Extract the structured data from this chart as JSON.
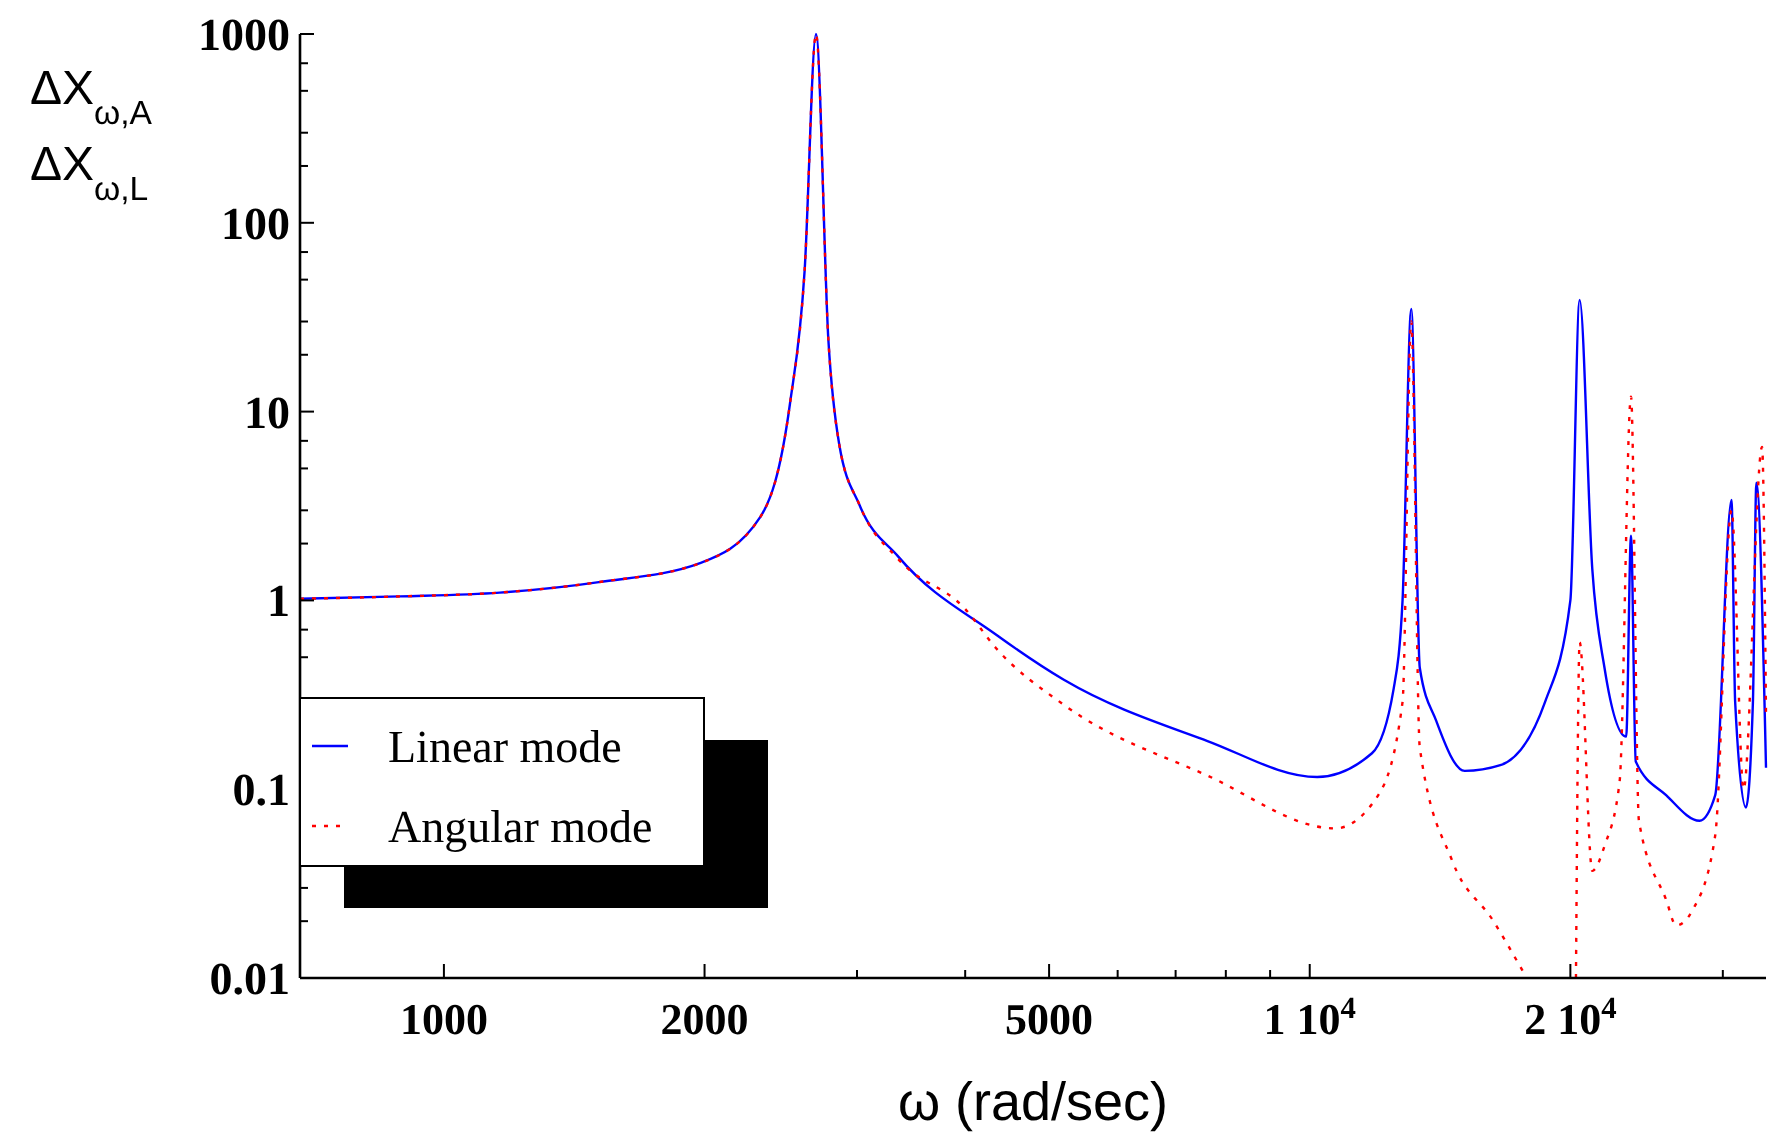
{
  "chart_data": {
    "type": "line",
    "xlabel": "ω (rad/sec)",
    "ylabel": "ΔX$_{ω,A}$ ΔX$_{ω,L}$",
    "log": "xy",
    "legend": "bottom left",
    "grid": false,
    "xlim": [
      682,
      33650
    ],
    "ylim": [
      0.01,
      1000
    ],
    "xticks": [
      1000,
      2000,
      {
        "value": 3000,
        "label": null
      },
      {
        "value": 4000,
        "label": null
      },
      5000,
      {
        "value": 6000,
        "label": null
      },
      {
        "value": 7000,
        "label": null
      },
      {
        "value": 8000,
        "label": null
      },
      {
        "value": 9000,
        "label": null
      },
      {
        "value": 10000,
        "label": "1  10$^{4}$"
      },
      {
        "value": 20000,
        "label": "2  10$^{4}$"
      },
      {
        "value": 30000,
        "label": null
      }
    ],
    "yticks": [
      {
        "value": 0.01,
        "label": "0.01"
      },
      {
        "value": 0.02,
        "label": null
      },
      {
        "value": 0.03,
        "label": null
      },
      {
        "value": 0.05,
        "label": null
      },
      {
        "value": 0.07,
        "label": null
      },
      {
        "value": 0.1,
        "label": "0.1"
      },
      {
        "value": 0.2,
        "label": null
      },
      {
        "value": 0.3,
        "label": null
      },
      {
        "value": 0.5,
        "label": null
      },
      {
        "value": 0.7,
        "label": null
      },
      1,
      {
        "value": 2,
        "label": null
      },
      {
        "value": 3,
        "label": null
      },
      {
        "value": 5,
        "label": null
      },
      {
        "value": 7,
        "label": null
      },
      10,
      {
        "value": 20,
        "label": null
      },
      {
        "value": 30,
        "label": null
      },
      {
        "value": 50,
        "label": null
      },
      {
        "value": 70,
        "label": null
      },
      100,
      {
        "value": 200,
        "label": null
      },
      {
        "value": 300,
        "label": null
      },
      {
        "value": 500,
        "label": null
      },
      {
        "value": 700,
        "label": null
      },
      1000
    ],
    "series": [
      {
        "name": "Linear mode",
        "color": "#0000ff",
        "line_style": "solid",
        "x": [
          682,
          890,
          1160,
          1510,
          1980,
          2320,
          2510,
          2610,
          2690,
          2780,
          2860,
          3020,
          3350,
          4340,
          5200,
          7620,
          10200,
          11800,
          12500,
          12800,
          13100,
          13400,
          14000,
          15100,
          16600,
          18700,
          20000,
          20500,
          21200,
          21900,
          23200,
          23500,
          23800,
          25800,
          28200,
          29400,
          30700,
          31000,
          31900,
          32500,
          32800,
          33650
        ],
        "values": [
          1.02,
          1.05,
          1.1,
          1.25,
          1.58,
          2.77,
          11,
          56,
          1000,
          24,
          6.8,
          3.2,
          1.7,
          0.66,
          0.38,
          0.18,
          0.116,
          0.155,
          0.34,
          1.0,
          35,
          0.44,
          0.23,
          0.125,
          0.134,
          0.29,
          1.0,
          39,
          1.47,
          0.44,
          0.19,
          2.2,
          0.14,
          0.093,
          0.068,
          0.093,
          3.4,
          0.29,
          0.08,
          0.29,
          4.2,
          0.13
        ]
      },
      {
        "name": "Angular mode",
        "color": "#ff0000",
        "line_style": "dotted",
        "x": [
          682,
          890,
          1160,
          1510,
          1980,
          2320,
          2510,
          2610,
          2690,
          2780,
          2860,
          3020,
          3350,
          4000,
          4340,
          5200,
          7620,
          10700,
          12000,
          12800,
          13100,
          13400,
          14600,
          16300,
          17700,
          19000,
          20300,
          20500,
          21200,
          21900,
          22800,
          23500,
          24000,
          25800,
          26500,
          27700,
          29400,
          30700,
          31700,
          33300,
          33650
        ],
        "values": [
          1.02,
          1.05,
          1.1,
          1.25,
          1.58,
          2.77,
          11,
          56,
          1000,
          24,
          6.8,
          3.2,
          1.65,
          0.9,
          0.56,
          0.28,
          0.118,
          0.062,
          0.093,
          0.29,
          30,
          0.166,
          0.042,
          0.02,
          0.0105,
          null,
          0.01,
          0.6,
          0.037,
          0.05,
          0.11,
          12,
          0.068,
          0.026,
          0.019,
          0.023,
          0.057,
          3.0,
          0.1,
          6.5,
          0.25
        ]
      }
    ]
  }
}
